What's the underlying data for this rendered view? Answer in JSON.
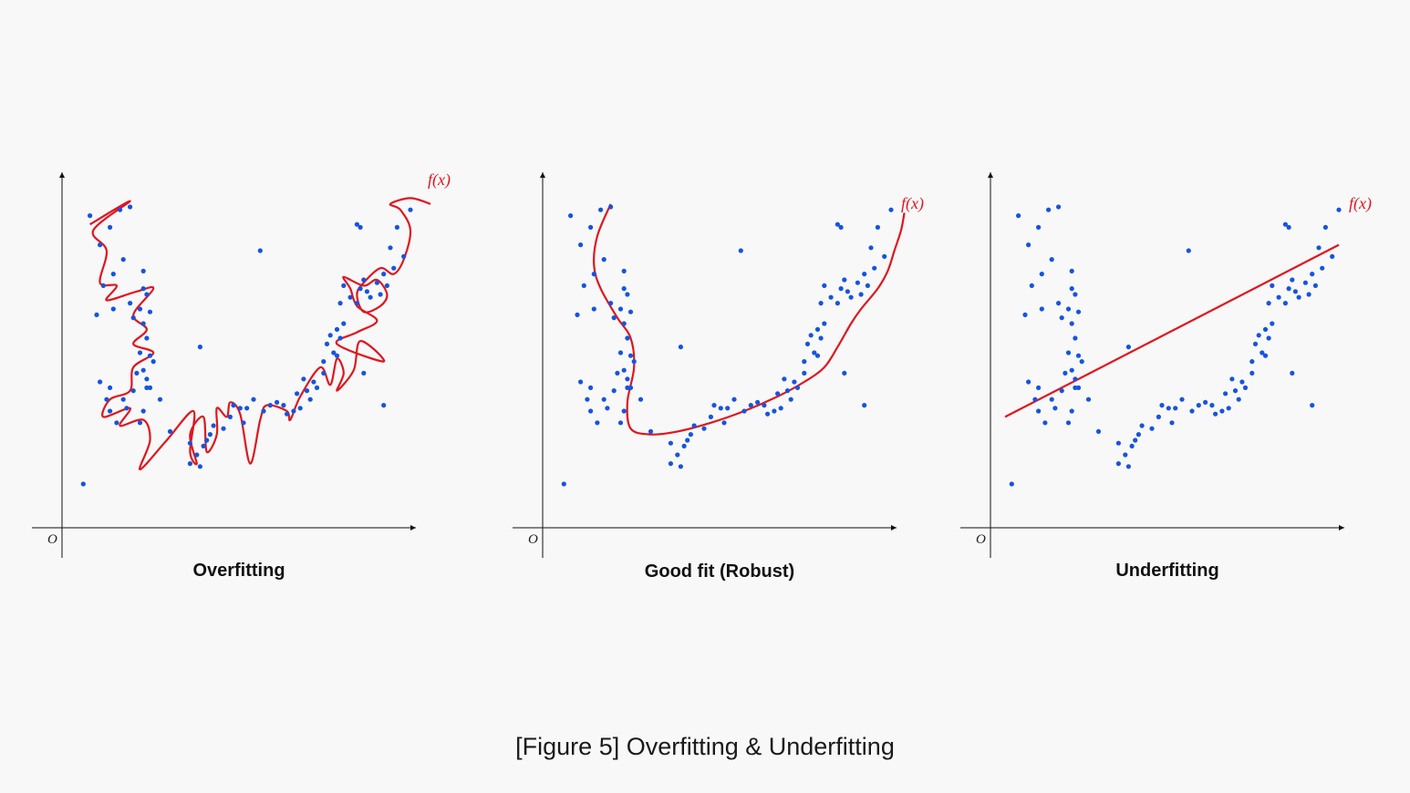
{
  "colors": {
    "points": "#1654e0",
    "curve": "#e0161e",
    "axis": "#111111",
    "background": "#f8f8f8"
  },
  "caption": "[Figure 5] Overfitting & Underfitting",
  "panels": [
    {
      "title": "Overfitting",
      "origin_label": "O",
      "curve_label": "f(x)",
      "curve_type": "wiggly"
    },
    {
      "title": "Good fit (Robust)",
      "origin_label": "O",
      "curve_label": "f(x)",
      "curve_type": "smooth"
    },
    {
      "title": "Underfitting",
      "origin_label": "O",
      "curve_label": "f(x)",
      "curve_type": "linear"
    }
  ],
  "chart_data": {
    "type": "scatter",
    "series": [
      {
        "points": [
          [
            0.04,
            0.97
          ],
          [
            0.16,
            1.0
          ],
          [
            0.13,
            0.99
          ],
          [
            0.07,
            0.87
          ],
          [
            0.08,
            0.73
          ],
          [
            0.11,
            0.77
          ],
          [
            0.06,
            0.63
          ],
          [
            0.11,
            0.65
          ],
          [
            0.16,
            0.67
          ],
          [
            0.17,
            0.62
          ],
          [
            0.2,
            0.6
          ],
          [
            0.19,
            0.65
          ],
          [
            0.21,
            0.7
          ],
          [
            0.2,
            0.78
          ],
          [
            0.2,
            0.72
          ],
          [
            0.22,
            0.64
          ],
          [
            0.21,
            0.55
          ],
          [
            0.19,
            0.5
          ],
          [
            0.22,
            0.49
          ],
          [
            0.23,
            0.47
          ],
          [
            0.2,
            0.44
          ],
          [
            0.21,
            0.41
          ],
          [
            0.22,
            0.38
          ],
          [
            0.18,
            0.43
          ],
          [
            0.17,
            0.37
          ],
          [
            0.14,
            0.34
          ],
          [
            0.1,
            0.38
          ],
          [
            0.07,
            0.4
          ],
          [
            0.09,
            0.34
          ],
          [
            0.1,
            0.3
          ],
          [
            0.12,
            0.26
          ],
          [
            0.15,
            0.31
          ],
          [
            0.19,
            0.26
          ],
          [
            0.2,
            0.3
          ],
          [
            0.21,
            0.38
          ],
          [
            0.25,
            0.34
          ],
          [
            0.28,
            0.23
          ],
          [
            0.34,
            0.19
          ],
          [
            0.36,
            0.15
          ],
          [
            0.34,
            0.12
          ],
          [
            0.37,
            0.11
          ],
          [
            0.38,
            0.18
          ],
          [
            0.39,
            0.2
          ],
          [
            0.4,
            0.22
          ],
          [
            0.41,
            0.25
          ],
          [
            0.44,
            0.24
          ],
          [
            0.46,
            0.28
          ],
          [
            0.47,
            0.32
          ],
          [
            0.49,
            0.31
          ],
          [
            0.5,
            0.26
          ],
          [
            0.51,
            0.31
          ],
          [
            0.53,
            0.34
          ],
          [
            0.56,
            0.3
          ],
          [
            0.58,
            0.32
          ],
          [
            0.6,
            0.33
          ],
          [
            0.62,
            0.32
          ],
          [
            0.63,
            0.29
          ],
          [
            0.65,
            0.3
          ],
          [
            0.66,
            0.36
          ],
          [
            0.67,
            0.31
          ],
          [
            0.68,
            0.41
          ],
          [
            0.69,
            0.37
          ],
          [
            0.7,
            0.34
          ],
          [
            0.71,
            0.4
          ],
          [
            0.72,
            0.38
          ],
          [
            0.74,
            0.43
          ],
          [
            0.74,
            0.47
          ],
          [
            0.75,
            0.53
          ],
          [
            0.76,
            0.56
          ],
          [
            0.77,
            0.5
          ],
          [
            0.78,
            0.49
          ],
          [
            0.79,
            0.55
          ],
          [
            0.8,
            0.6
          ],
          [
            0.79,
            0.67
          ],
          [
            0.8,
            0.73
          ],
          [
            0.82,
            0.69
          ],
          [
            0.84,
            0.67
          ],
          [
            0.85,
            0.72
          ],
          [
            0.86,
            0.75
          ],
          [
            0.87,
            0.71
          ],
          [
            0.88,
            0.69
          ],
          [
            0.9,
            0.74
          ],
          [
            0.91,
            0.7
          ],
          [
            0.92,
            0.77
          ],
          [
            0.93,
            0.73
          ],
          [
            0.95,
            0.79
          ],
          [
            0.94,
            0.86
          ],
          [
            0.96,
            0.93
          ],
          [
            0.98,
            0.83
          ],
          [
            1.0,
            0.99
          ],
          [
            0.85,
            0.93
          ],
          [
            0.55,
            0.85
          ],
          [
            0.37,
            0.52
          ],
          [
            0.84,
            0.94
          ],
          [
            0.02,
            0.05
          ],
          [
            0.92,
            0.32
          ],
          [
            0.78,
            0.58
          ],
          [
            0.1,
            0.93
          ],
          [
            0.14,
            0.82
          ],
          [
            0.86,
            0.43
          ]
        ]
      }
    ],
    "curves": {
      "wiggly": [
        [
          0.04,
          0.94
        ],
        [
          0.16,
          1.02
        ],
        [
          0.05,
          0.92
        ],
        [
          0.09,
          0.85
        ],
        [
          0.07,
          0.74
        ],
        [
          0.12,
          0.73
        ],
        [
          0.09,
          0.68
        ],
        [
          0.18,
          0.71
        ],
        [
          0.23,
          0.72
        ],
        [
          0.17,
          0.63
        ],
        [
          0.21,
          0.58
        ],
        [
          0.17,
          0.53
        ],
        [
          0.23,
          0.5
        ],
        [
          0.17,
          0.45
        ],
        [
          0.16,
          0.37
        ],
        [
          0.1,
          0.34
        ],
        [
          0.08,
          0.28
        ],
        [
          0.16,
          0.31
        ],
        [
          0.13,
          0.25
        ],
        [
          0.2,
          0.27
        ],
        [
          0.22,
          0.2
        ],
        [
          0.19,
          0.1
        ],
        [
          0.27,
          0.2
        ],
        [
          0.35,
          0.3
        ],
        [
          0.34,
          0.16
        ],
        [
          0.36,
          0.12
        ],
        [
          0.34,
          0.22
        ],
        [
          0.38,
          0.28
        ],
        [
          0.39,
          0.16
        ],
        [
          0.42,
          0.22
        ],
        [
          0.42,
          0.31
        ],
        [
          0.45,
          0.28
        ],
        [
          0.46,
          0.33
        ],
        [
          0.49,
          0.29
        ],
        [
          0.52,
          0.12
        ],
        [
          0.55,
          0.27
        ],
        [
          0.57,
          0.32
        ],
        [
          0.63,
          0.3
        ],
        [
          0.64,
          0.27
        ],
        [
          0.67,
          0.35
        ],
        [
          0.73,
          0.45
        ],
        [
          0.76,
          0.39
        ],
        [
          0.78,
          0.48
        ],
        [
          0.8,
          0.43
        ],
        [
          0.78,
          0.37
        ],
        [
          0.83,
          0.44
        ],
        [
          0.85,
          0.54
        ],
        [
          0.92,
          0.47
        ],
        [
          0.78,
          0.53
        ],
        [
          0.84,
          0.57
        ],
        [
          0.9,
          0.61
        ],
        [
          0.84,
          0.66
        ],
        [
          0.82,
          0.72
        ],
        [
          0.8,
          0.76
        ],
        [
          0.86,
          0.73
        ],
        [
          0.9,
          0.75
        ],
        [
          0.93,
          0.7
        ],
        [
          0.91,
          0.66
        ],
        [
          0.86,
          0.64
        ],
        [
          0.84,
          0.7
        ],
        [
          0.86,
          0.74
        ],
        [
          0.91,
          0.79
        ],
        [
          0.95,
          0.77
        ],
        [
          0.98,
          0.82
        ],
        [
          1.0,
          0.92
        ],
        [
          0.97,
          0.99
        ],
        [
          0.94,
          1.01
        ],
        [
          1.0,
          1.03
        ],
        [
          1.06,
          1.01
        ]
      ],
      "smooth": [
        [
          0.16,
          1.01
        ],
        [
          0.12,
          0.9
        ],
        [
          0.11,
          0.8
        ],
        [
          0.13,
          0.72
        ],
        [
          0.18,
          0.62
        ],
        [
          0.22,
          0.55
        ],
        [
          0.23,
          0.45
        ],
        [
          0.21,
          0.33
        ],
        [
          0.22,
          0.24
        ],
        [
          0.28,
          0.22
        ],
        [
          0.36,
          0.23
        ],
        [
          0.46,
          0.26
        ],
        [
          0.56,
          0.3
        ],
        [
          0.66,
          0.35
        ],
        [
          0.74,
          0.4
        ],
        [
          0.8,
          0.45
        ],
        [
          0.84,
          0.52
        ],
        [
          0.88,
          0.6
        ],
        [
          0.91,
          0.65
        ],
        [
          0.96,
          0.72
        ],
        [
          0.99,
          0.78
        ],
        [
          1.01,
          0.85
        ],
        [
          1.03,
          0.92
        ],
        [
          1.04,
          0.98
        ]
      ],
      "linear": [
        [
          0.0,
          0.28
        ],
        [
          1.0,
          0.87
        ]
      ]
    }
  }
}
